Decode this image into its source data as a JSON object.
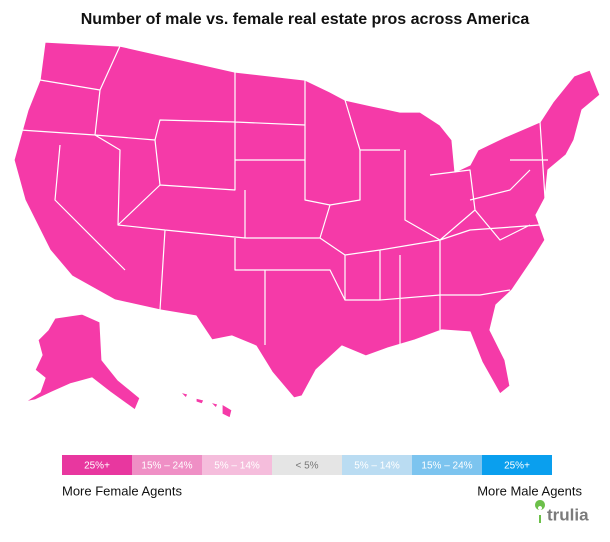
{
  "title": "Number of male vs. female real estate pros across America",
  "map_color": "#f53aa8",
  "legend": {
    "items": [
      {
        "label": "25%+",
        "color": "#e8379f",
        "text_color": "#ffffff"
      },
      {
        "label": "15% – 24%",
        "color": "#ef8fc5",
        "text_color": "#ffffff"
      },
      {
        "label": "5% – 14%",
        "color": "#f5bddc",
        "text_color": "#ffffff"
      },
      {
        "label": "< 5%",
        "color": "#e5e5e5",
        "text_color": "#777777"
      },
      {
        "label": "5% – 14%",
        "color": "#badcf2",
        "text_color": "#ffffff"
      },
      {
        "label": "15% – 24%",
        "color": "#7cc4ef",
        "text_color": "#ffffff"
      },
      {
        "label": "25%+",
        "color": "#0a9fee",
        "text_color": "#ffffff"
      }
    ],
    "left_label": "More Female Agents",
    "right_label": "More Male Agents"
  },
  "logo": "trulia"
}
